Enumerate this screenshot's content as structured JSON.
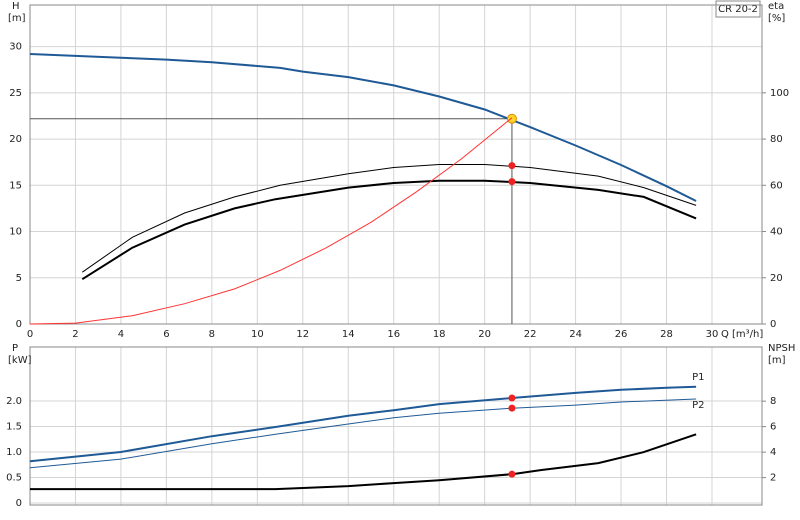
{
  "chart_data": [
    {
      "type": "line",
      "pump": "CR 20-2",
      "xlabel": "Q [m³/h]",
      "ylabel": [
        "H",
        "[m]"
      ],
      "y2label": [
        "eta",
        "[%]"
      ],
      "xlim": [
        0,
        32.2
      ],
      "xticks": [
        0,
        2,
        4,
        6,
        8,
        10,
        12,
        14,
        16,
        18,
        20,
        22,
        24,
        26,
        28,
        30
      ],
      "ylim": [
        0,
        34.5
      ],
      "yticks": [
        0,
        5,
        10,
        15,
        20,
        25,
        30
      ],
      "y2lim": [
        0,
        138
      ],
      "y2ticks": [
        0,
        20,
        40,
        60,
        80,
        100
      ],
      "grid": true,
      "duty_x": 21.2,
      "duty_lines": true,
      "series": [
        {
          "color": "#1f5a96",
          "line_width": 2,
          "duty": 22.2,
          "duty_color": "#ffd42a",
          "x": [
            0,
            2,
            4,
            6,
            8,
            10,
            11,
            12,
            14,
            16,
            18,
            20,
            22,
            24,
            26,
            28,
            29.3
          ],
          "values": [
            29.2,
            29.0,
            28.8,
            28.6,
            28.3,
            27.9,
            27.7,
            27.3,
            26.7,
            25.8,
            24.6,
            23.2,
            21.3,
            19.3,
            17.2,
            14.9,
            13.3
          ]
        },
        {
          "color": "#000000",
          "line_width": 1,
          "axis": "y2",
          "duty": 68.5,
          "duty_color": "#ee2222",
          "x": [
            2.3,
            4.5,
            6.8,
            9,
            11,
            14,
            16,
            18,
            20,
            22,
            25,
            27,
            29.3
          ],
          "values": [
            22.4,
            37.5,
            48,
            55,
            60,
            65,
            67.7,
            69,
            69,
            67.7,
            64,
            59,
            51.3
          ]
        },
        {
          "color": "#000000",
          "line_width": 2,
          "axis": "y2",
          "duty": 61.6,
          "duty_color": "#ee2222",
          "x": [
            2.3,
            4.5,
            6.8,
            9,
            10.8,
            14,
            16,
            18,
            20,
            22,
            25,
            27,
            29.3
          ],
          "values": [
            19.4,
            33,
            43,
            50,
            54,
            59,
            61,
            62,
            62,
            61,
            58,
            55,
            45.7
          ]
        },
        {
          "color": "#ff3333",
          "line_width": 1,
          "x": [
            0,
            2,
            4.5,
            6.8,
            9,
            11,
            13,
            15,
            17,
            19,
            21.2
          ],
          "values": [
            0,
            0.1,
            0.9,
            2.2,
            3.8,
            5.8,
            8.2,
            11,
            14.3,
            17.9,
            22.3
          ]
        }
      ]
    },
    {
      "type": "line",
      "ylabel": [
        "P",
        "[kW]"
      ],
      "y2label": [
        "NPSH",
        "[m]"
      ],
      "xlim": [
        0,
        32.2
      ],
      "xticks": [
        0,
        2,
        4,
        6,
        8,
        10,
        12,
        14,
        16,
        18,
        20,
        22,
        24,
        26,
        28,
        30
      ],
      "ylim": [
        -0.04,
        3.06
      ],
      "yticks": [
        0,
        0.5,
        {
          "value": 1,
          "label": "1.0"
        },
        1.5,
        {
          "value": 2,
          "label": "2.0"
        }
      ],
      "y2lim": [
        -0.15,
        12.25
      ],
      "y2ticks": [
        2,
        4,
        6,
        8
      ],
      "grid": true,
      "duty_x": 21.2,
      "series": [
        {
          "name": "P1",
          "color": "#1f5a96",
          "line_width": 2,
          "duty": 2.06,
          "duty_color": "#ee2222",
          "x": [
            0,
            4,
            8,
            10.8,
            14,
            16,
            18,
            21.2,
            24,
            26,
            28,
            29.3
          ],
          "values": [
            0.82,
            1.0,
            1.31,
            1.49,
            1.71,
            1.82,
            1.94,
            2.06,
            2.16,
            2.22,
            2.26,
            2.28
          ]
        },
        {
          "name": "P2",
          "color": "#1f5a96",
          "line_width": 1,
          "duty": 1.86,
          "duty_color": "#ee2222",
          "x": [
            0,
            4,
            8,
            10.8,
            14,
            16,
            18,
            21.2,
            24,
            26,
            29.3
          ],
          "values": [
            0.69,
            0.86,
            1.16,
            1.35,
            1.55,
            1.67,
            1.76,
            1.86,
            1.92,
            1.98,
            2.04
          ]
        },
        {
          "color": "#000000",
          "line_width": 2,
          "axis": "y2",
          "duty": 2.27,
          "duty_color": "#ee2222",
          "x": [
            0,
            10.8,
            14,
            16,
            18,
            21.2,
            22.5,
            25,
            27,
            29.3
          ],
          "values": [
            1.1,
            1.1,
            1.33,
            1.57,
            1.8,
            2.27,
            2.6,
            3.14,
            4.0,
            5.4
          ]
        }
      ]
    }
  ]
}
